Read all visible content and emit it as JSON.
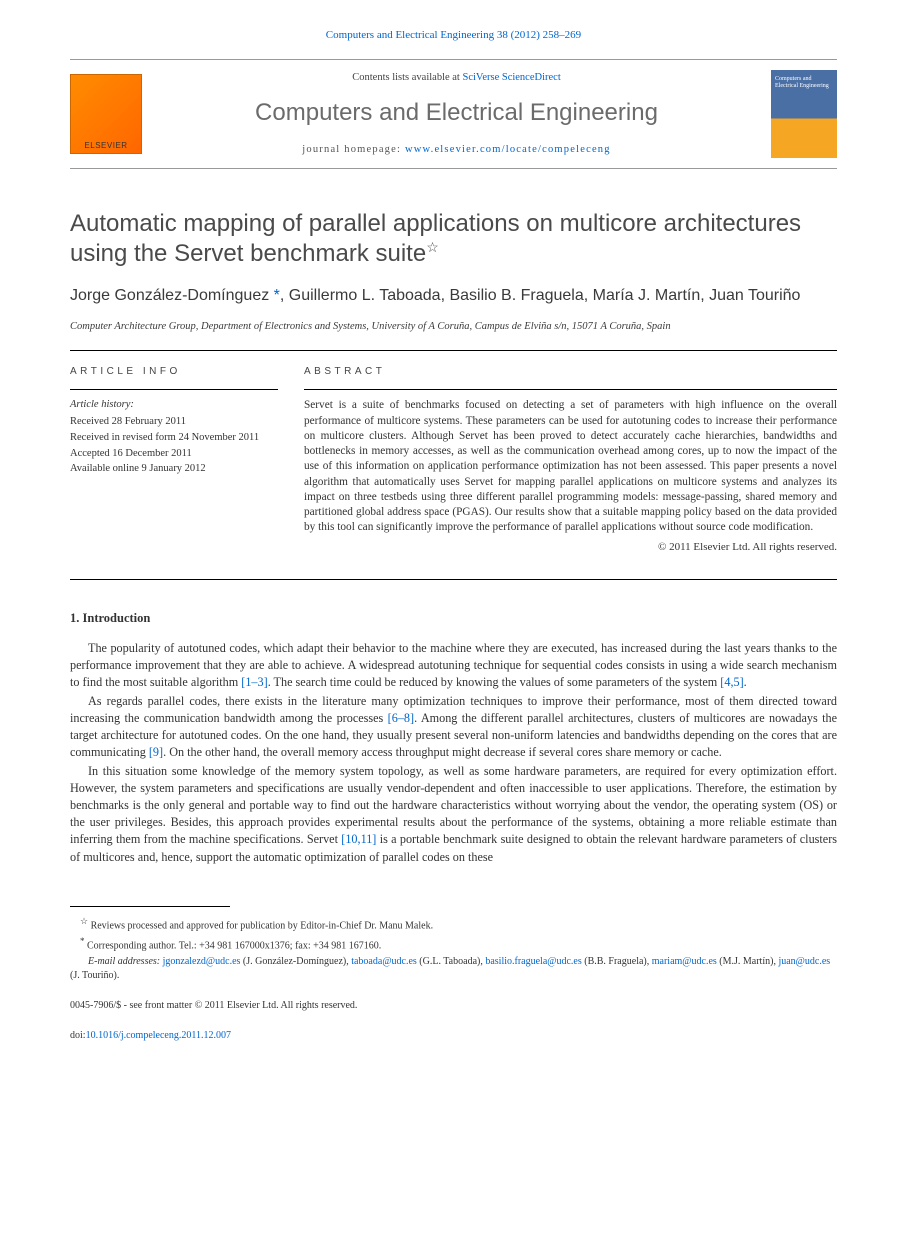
{
  "header": {
    "citation": "Computers and Electrical Engineering 38 (2012) 258–269",
    "contents_prefix": "Contents lists available at ",
    "contents_link": "SciVerse ScienceDirect",
    "journal_name": "Computers and Electrical Engineering",
    "homepage_prefix": "journal homepage: ",
    "homepage_url": "www.elsevier.com/locate/compeleceng"
  },
  "article": {
    "title": "Automatic mapping of parallel applications on multicore architectures using the Servet benchmark suite",
    "title_mark": "☆",
    "authors_html": [
      {
        "name": "Jorge González-Domínguez",
        "corr": true
      },
      {
        "name": "Guillermo L. Taboada",
        "corr": false
      },
      {
        "name": "Basilio B. Fraguela",
        "corr": false
      },
      {
        "name": "María J. Martín",
        "corr": false
      },
      {
        "name": "Juan Touriño",
        "corr": false
      }
    ],
    "corr_mark": "*",
    "affiliation": "Computer Architecture Group, Department of Electronics and Systems, University of A Coruña, Campus de Elviña s/n, 15071 A Coruña, Spain"
  },
  "info": {
    "heading": "ARTICLE INFO",
    "history_label": "Article history:",
    "history": [
      "Received 28 February 2011",
      "Received in revised form 24 November 2011",
      "Accepted 16 December 2011",
      "Available online 9 January 2012"
    ]
  },
  "abstract": {
    "heading": "ABSTRACT",
    "text": "Servet is a suite of benchmarks focused on detecting a set of parameters with high influence on the overall performance of multicore systems. These parameters can be used for autotuning codes to increase their performance on multicore clusters. Although Servet has been proved to detect accurately cache hierarchies, bandwidths and bottlenecks in memory accesses, as well as the communication overhead among cores, up to now the impact of the use of this information on application performance optimization has not been assessed. This paper presents a novel algorithm that automatically uses Servet for mapping parallel applications on multicore systems and analyzes its impact on three testbeds using three different parallel programming models: message-passing, shared memory and partitioned global address space (PGAS). Our results show that a suitable mapping policy based on the data provided by this tool can significantly improve the performance of parallel applications without source code modification.",
    "copyright": "© 2011 Elsevier Ltd. All rights reserved."
  },
  "body": {
    "intro_heading": "1. Introduction",
    "paragraphs": [
      {
        "text": "The popularity of autotuned codes, which adapt their behavior to the machine where they are executed, has increased during the last years thanks to the performance improvement that they are able to achieve. A widespread autotuning technique for sequential codes consists in using a wide search mechanism to find the most suitable algorithm ",
        "ref1": "[1–3]",
        "mid": ". The search time could be reduced by knowing the values of some parameters of the system ",
        "ref2": "[4,5]",
        "tail": "."
      },
      {
        "text": "As regards parallel codes, there exists in the literature many optimization techniques to improve their performance, most of them directed toward increasing the communication bandwidth among the processes ",
        "ref1": "[6–8]",
        "mid": ". Among the different parallel architectures, clusters of multicores are nowadays the target architecture for autotuned codes. On the one hand, they usually present several non-uniform latencies and bandwidths depending on the cores that are communicating ",
        "ref2": "[9]",
        "tail": ". On the other hand, the overall memory access throughput might decrease if several cores share memory or cache."
      },
      {
        "text": "In this situation some knowledge of the memory system topology, as well as some hardware parameters, are required for every optimization effort. However, the system parameters and specifications are usually vendor-dependent and often inaccessible to user applications. Therefore, the estimation by benchmarks is the only general and portable way to find out the hardware characteristics without worrying about the vendor, the operating system (OS) or the user privileges. Besides, this approach provides experimental results about the performance of the systems, obtaining a more reliable estimate than inferring them from the machine specifications. Servet ",
        "ref1": "[10,11]",
        "mid": " is a portable benchmark suite designed to obtain the relevant hardware parameters of clusters of multicores and, hence, support the automatic optimization of parallel codes on these",
        "ref2": "",
        "tail": ""
      }
    ]
  },
  "footnotes": {
    "review": "Reviews processed and approved for publication by Editor-in-Chief Dr. Manu Malek.",
    "review_mark": "☆",
    "corr": "Corresponding author. Tel.: +34 981 167000x1376; fax: +34 981 167160.",
    "corr_mark": "*",
    "email_label": "E-mail addresses: ",
    "emails": [
      {
        "addr": "jgonzalezd@udc.es",
        "who": "(J. González-Domínguez)"
      },
      {
        "addr": "taboada@udc.es",
        "who": "(G.L. Taboada)"
      },
      {
        "addr": "basilio.fraguela@udc.es",
        "who": "(B.B. Fraguela)"
      },
      {
        "addr": "mariam@udc.es",
        "who": "(M.J. Martín)"
      },
      {
        "addr": "juan@udc.es",
        "who": "(J. Touriño)"
      }
    ]
  },
  "bottom": {
    "issn": "0045-7906/$ - see front matter © 2011 Elsevier Ltd. All rights reserved.",
    "doi_prefix": "doi:",
    "doi": "10.1016/j.compeleceng.2011.12.007"
  },
  "colors": {
    "link": "#0066cc",
    "text": "#333333",
    "title_gray": "#4a4a4a"
  }
}
